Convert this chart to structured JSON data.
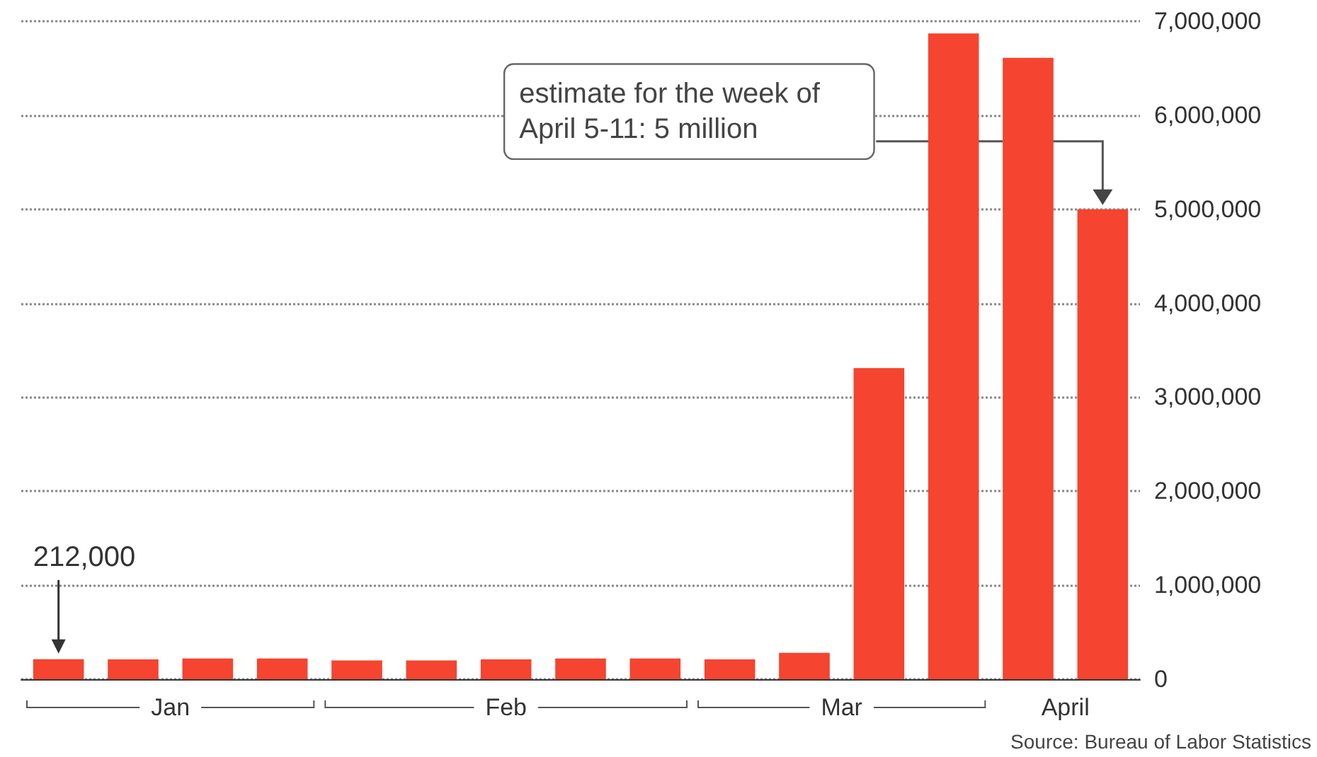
{
  "chart_data": {
    "type": "bar",
    "categories": [
      null,
      null,
      null,
      null,
      null,
      null,
      null,
      null,
      null,
      null,
      null,
      null,
      null,
      null,
      null
    ],
    "values": [
      212000,
      210000,
      220000,
      220000,
      200000,
      200000,
      210000,
      220000,
      220000,
      210000,
      280000,
      3310000,
      6870000,
      6610000,
      5000000
    ],
    "color": "#f5442f",
    "ylim": [
      0,
      7000000
    ],
    "yticks": [
      {
        "value": 0,
        "label": "0"
      },
      {
        "value": 1000000,
        "label": "1,000,000"
      },
      {
        "value": 2000000,
        "label": "2,000,000"
      },
      {
        "value": 3000000,
        "label": "3,000,000"
      },
      {
        "value": 4000000,
        "label": "4,000,000"
      },
      {
        "value": 5000000,
        "label": "5,000,000"
      },
      {
        "value": 6000000,
        "label": "6,000,000"
      },
      {
        "value": 7000000,
        "label": "7,000,000"
      }
    ],
    "grid": "y",
    "annotations": [
      "212,000",
      "estimate for the week of April 5-11: 5 million",
      "Jan",
      "Feb",
      "Mar",
      "April",
      "Source: Bureau of Labor Statistics"
    ]
  }
}
